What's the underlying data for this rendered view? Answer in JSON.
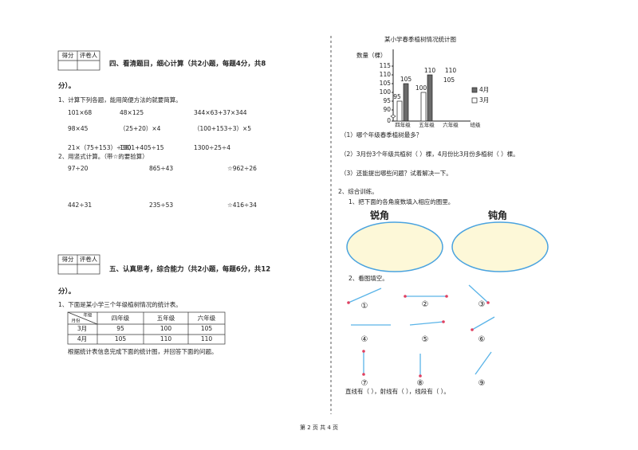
{
  "left": {
    "section4": {
      "score_box": [
        "得分",
        "评卷人"
      ],
      "heading": "四、看清题目，细心计算（共2小题，每题4分，共8",
      "heading_cont": "分）。",
      "q1": {
        "prompt": "1、计算下列各题，能用简便方法的就要简算。",
        "rows": [
          [
            "101×68",
            "48×125",
            "344×63+37×344"
          ],
          [
            "98×45",
            "（25+20）×4",
            "（100+153÷3）×5"
          ],
          [
            "21×（75+153）÷38）",
            "1301+405÷15",
            "1300÷25÷4"
          ]
        ]
      },
      "q2": {
        "prompt": "2、用竖式计算。（带☆的要验算）",
        "rows": [
          [
            "97÷20",
            "865÷43",
            "☆962÷26"
          ],
          [
            "442÷31",
            "235÷53",
            "☆416÷34"
          ]
        ]
      }
    },
    "section5": {
      "score_box": [
        "得分",
        "评卷人"
      ],
      "heading": "五、认真思考，综合能力（共2小题，每题6分，共12",
      "heading_cont": "分）。",
      "q1": "1、下面是某小学三个年级植树情况的统计表。",
      "table": {
        "corner": [
          "年级",
          "月份"
        ],
        "header": [
          "四年级",
          "五年级",
          "六年级"
        ],
        "rows": [
          [
            "3月",
            "95",
            "100",
            "105"
          ],
          [
            "4月",
            "105",
            "110",
            "110"
          ]
        ]
      },
      "note": "根据统计表信息完成下面的统计图，并回答下面的问题。"
    }
  },
  "right": {
    "chart_data": {
      "type": "bar",
      "title": "某小学春季植树情况统计图",
      "y_label": "数量（棵）",
      "x_label": "班级",
      "categories": [
        "四年级",
        "五年级",
        "六年级"
      ],
      "series": [
        {
          "name": "3月",
          "color": "#ffffff",
          "values": [
            95,
            100,
            null
          ]
        },
        {
          "name": "4月",
          "color": "#6a6a6a",
          "values": [
            105,
            110,
            null
          ]
        }
      ],
      "annotations": [
        "110",
        "105"
      ],
      "ylim": [
        0,
        115
      ],
      "yticks": [
        0,
        90,
        95,
        100,
        105,
        110,
        115
      ]
    },
    "questions": [
      "（1）哪个年级春季植树最多？",
      "（2）3月份3个年级共植树（    ）棵，4月份比3月份多植树（    ）棵。",
      "（3）还能提出哪些问题？试着解决一下。"
    ],
    "section2": "2、综合训练。",
    "q1": "1、把下面的各角度数填入相应的圈里。",
    "circles": [
      "锐角",
      "钝角"
    ],
    "q2": "2、看图填空。",
    "figures": [
      "①",
      "②",
      "③",
      "④",
      "⑤",
      "⑥",
      "⑦",
      "⑧",
      "⑨"
    ],
    "answer": "直线有（    ），射线有（    ），线段有（    ）。"
  },
  "footer": "第 2 页 共 4 页"
}
